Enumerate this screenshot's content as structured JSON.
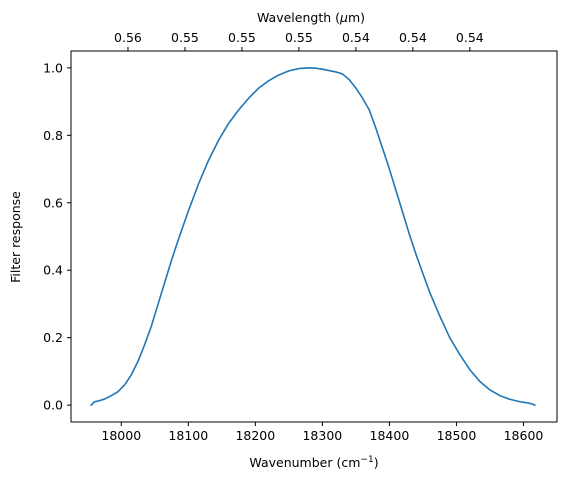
{
  "chart_data": {
    "type": "line",
    "title": "",
    "xlabel": "Wavenumber (cm",
    "xlabel_sup": "−1",
    "xlabel_close": ")",
    "ylabel": "Filter response",
    "top_xlabel": "Wavelength (",
    "top_xlabel_mu": "μ",
    "top_xlabel_unit": "m)",
    "xlim": [
      17925,
      18650
    ],
    "ylim": [
      -0.05,
      1.05
    ],
    "grid": false,
    "x_ticks": [
      {
        "value": 18000,
        "label": "18000"
      },
      {
        "value": 18100,
        "label": "18100"
      },
      {
        "value": 18200,
        "label": "18200"
      },
      {
        "value": 18300,
        "label": "18300"
      },
      {
        "value": 18400,
        "label": "18400"
      },
      {
        "value": 18500,
        "label": "18500"
      },
      {
        "value": 18600,
        "label": "18600"
      }
    ],
    "y_ticks": [
      {
        "value": 0.0,
        "label": "0.0"
      },
      {
        "value": 0.2,
        "label": "0.2"
      },
      {
        "value": 0.4,
        "label": "0.4"
      },
      {
        "value": 0.6,
        "label": "0.6"
      },
      {
        "value": 0.8,
        "label": "0.8"
      },
      {
        "value": 1.0,
        "label": "1.0"
      }
    ],
    "top_ticks": [
      {
        "value": 18010,
        "label": "0.56"
      },
      {
        "value": 18095,
        "label": "0.55"
      },
      {
        "value": 18180,
        "label": "0.55"
      },
      {
        "value": 18265,
        "label": "0.55"
      },
      {
        "value": 18350,
        "label": "0.54"
      },
      {
        "value": 18435,
        "label": "0.54"
      },
      {
        "value": 18520,
        "label": "0.54"
      }
    ],
    "series": [
      {
        "color": "#1f77b4",
        "x": [
          17955,
          17960,
          17965,
          17975,
          17985,
          17995,
          18005,
          18015,
          18025,
          18035,
          18045,
          18055,
          18065,
          18075,
          18085,
          18100,
          18115,
          18130,
          18145,
          18160,
          18175,
          18190,
          18205,
          18220,
          18235,
          18250,
          18265,
          18280,
          18290,
          18300,
          18310,
          18320,
          18330,
          18340,
          18350,
          18360,
          18370,
          18380,
          18390,
          18400,
          18410,
          18420,
          18430,
          18440,
          18450,
          18460,
          18475,
          18490,
          18505,
          18520,
          18535,
          18550,
          18565,
          18580,
          18595,
          18605,
          18612,
          18617
        ],
        "y": [
          0.0,
          0.01,
          0.012,
          0.018,
          0.028,
          0.04,
          0.06,
          0.09,
          0.13,
          0.18,
          0.235,
          0.3,
          0.365,
          0.43,
          0.49,
          0.575,
          0.655,
          0.725,
          0.785,
          0.835,
          0.875,
          0.91,
          0.94,
          0.962,
          0.979,
          0.991,
          0.998,
          1.0,
          0.999,
          0.996,
          0.992,
          0.988,
          0.982,
          0.965,
          0.94,
          0.91,
          0.875,
          0.82,
          0.76,
          0.7,
          0.635,
          0.57,
          0.505,
          0.445,
          0.39,
          0.335,
          0.265,
          0.2,
          0.15,
          0.105,
          0.07,
          0.045,
          0.028,
          0.017,
          0.01,
          0.007,
          0.004,
          0.0
        ]
      }
    ]
  }
}
